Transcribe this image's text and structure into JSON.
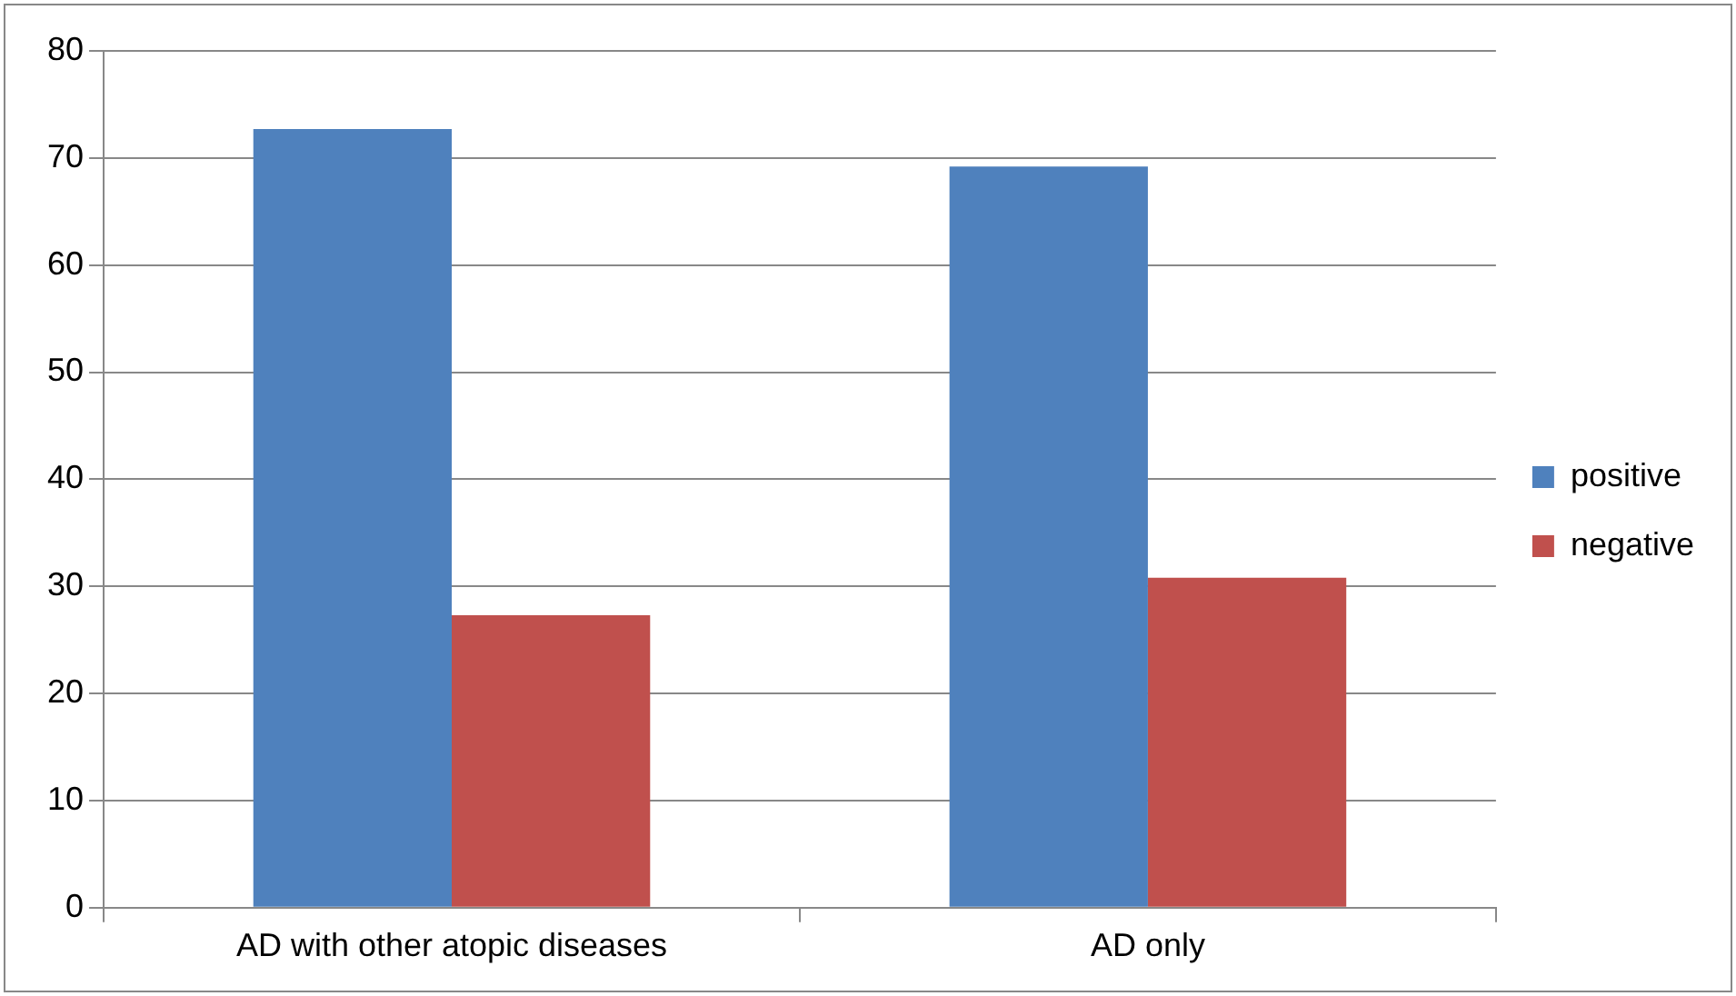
{
  "chart_data": {
    "type": "bar",
    "categories": [
      "AD with other atopic diseases",
      "AD only"
    ],
    "series": [
      {
        "name": "positive",
        "color": "#4f81bd",
        "values": [
          72.7,
          69.2
        ]
      },
      {
        "name": "negative",
        "color": "#c0504d",
        "values": [
          27.3,
          30.8
        ]
      }
    ],
    "ylim": [
      0,
      80
    ],
    "yticks": [
      0,
      10,
      20,
      30,
      40,
      50,
      60,
      70,
      80
    ],
    "grid": "y",
    "legend": "right"
  }
}
